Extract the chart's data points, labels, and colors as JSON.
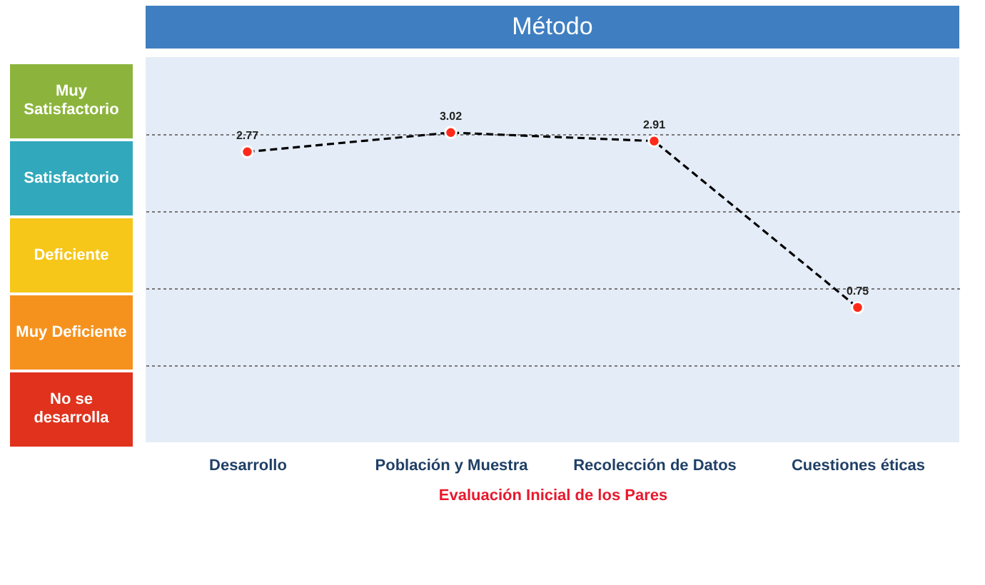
{
  "chart_data": [
    {
      "type": "other",
      "annotations": [
        "Muy Satisfactorio",
        "Satisfactorio",
        "Deficiente",
        "Muy Deficiente",
        "No se desarrolla"
      ],
      "colors": [
        "#8cb43c",
        "#31a8bb",
        "#f6c619",
        "#f5921e",
        "#e0321c"
      ]
    },
    {
      "type": "line",
      "title": "Método",
      "xlabel": "Evaluación Inicial de los Pares",
      "categories": [
        "Desarrollo",
        "Población y Muestra",
        "Recolección de Datos",
        "Cuestiones éticas"
      ],
      "series": [
        {
          "color": "#000000",
          "values": [
            2.77,
            3.02,
            2.91,
            0.75
          ]
        }
      ],
      "ylim": [
        -1,
        4
      ],
      "yticks": [
        {
          "value": 0,
          "label": null
        },
        {
          "value": 1,
          "label": null
        },
        {
          "value": 2,
          "label": null
        },
        {
          "value": 3,
          "label": null
        }
      ],
      "tick_labels": "x",
      "grid": "y",
      "marker": "circle",
      "line_style": "dashed",
      "data_labels": true
    }
  ]
}
